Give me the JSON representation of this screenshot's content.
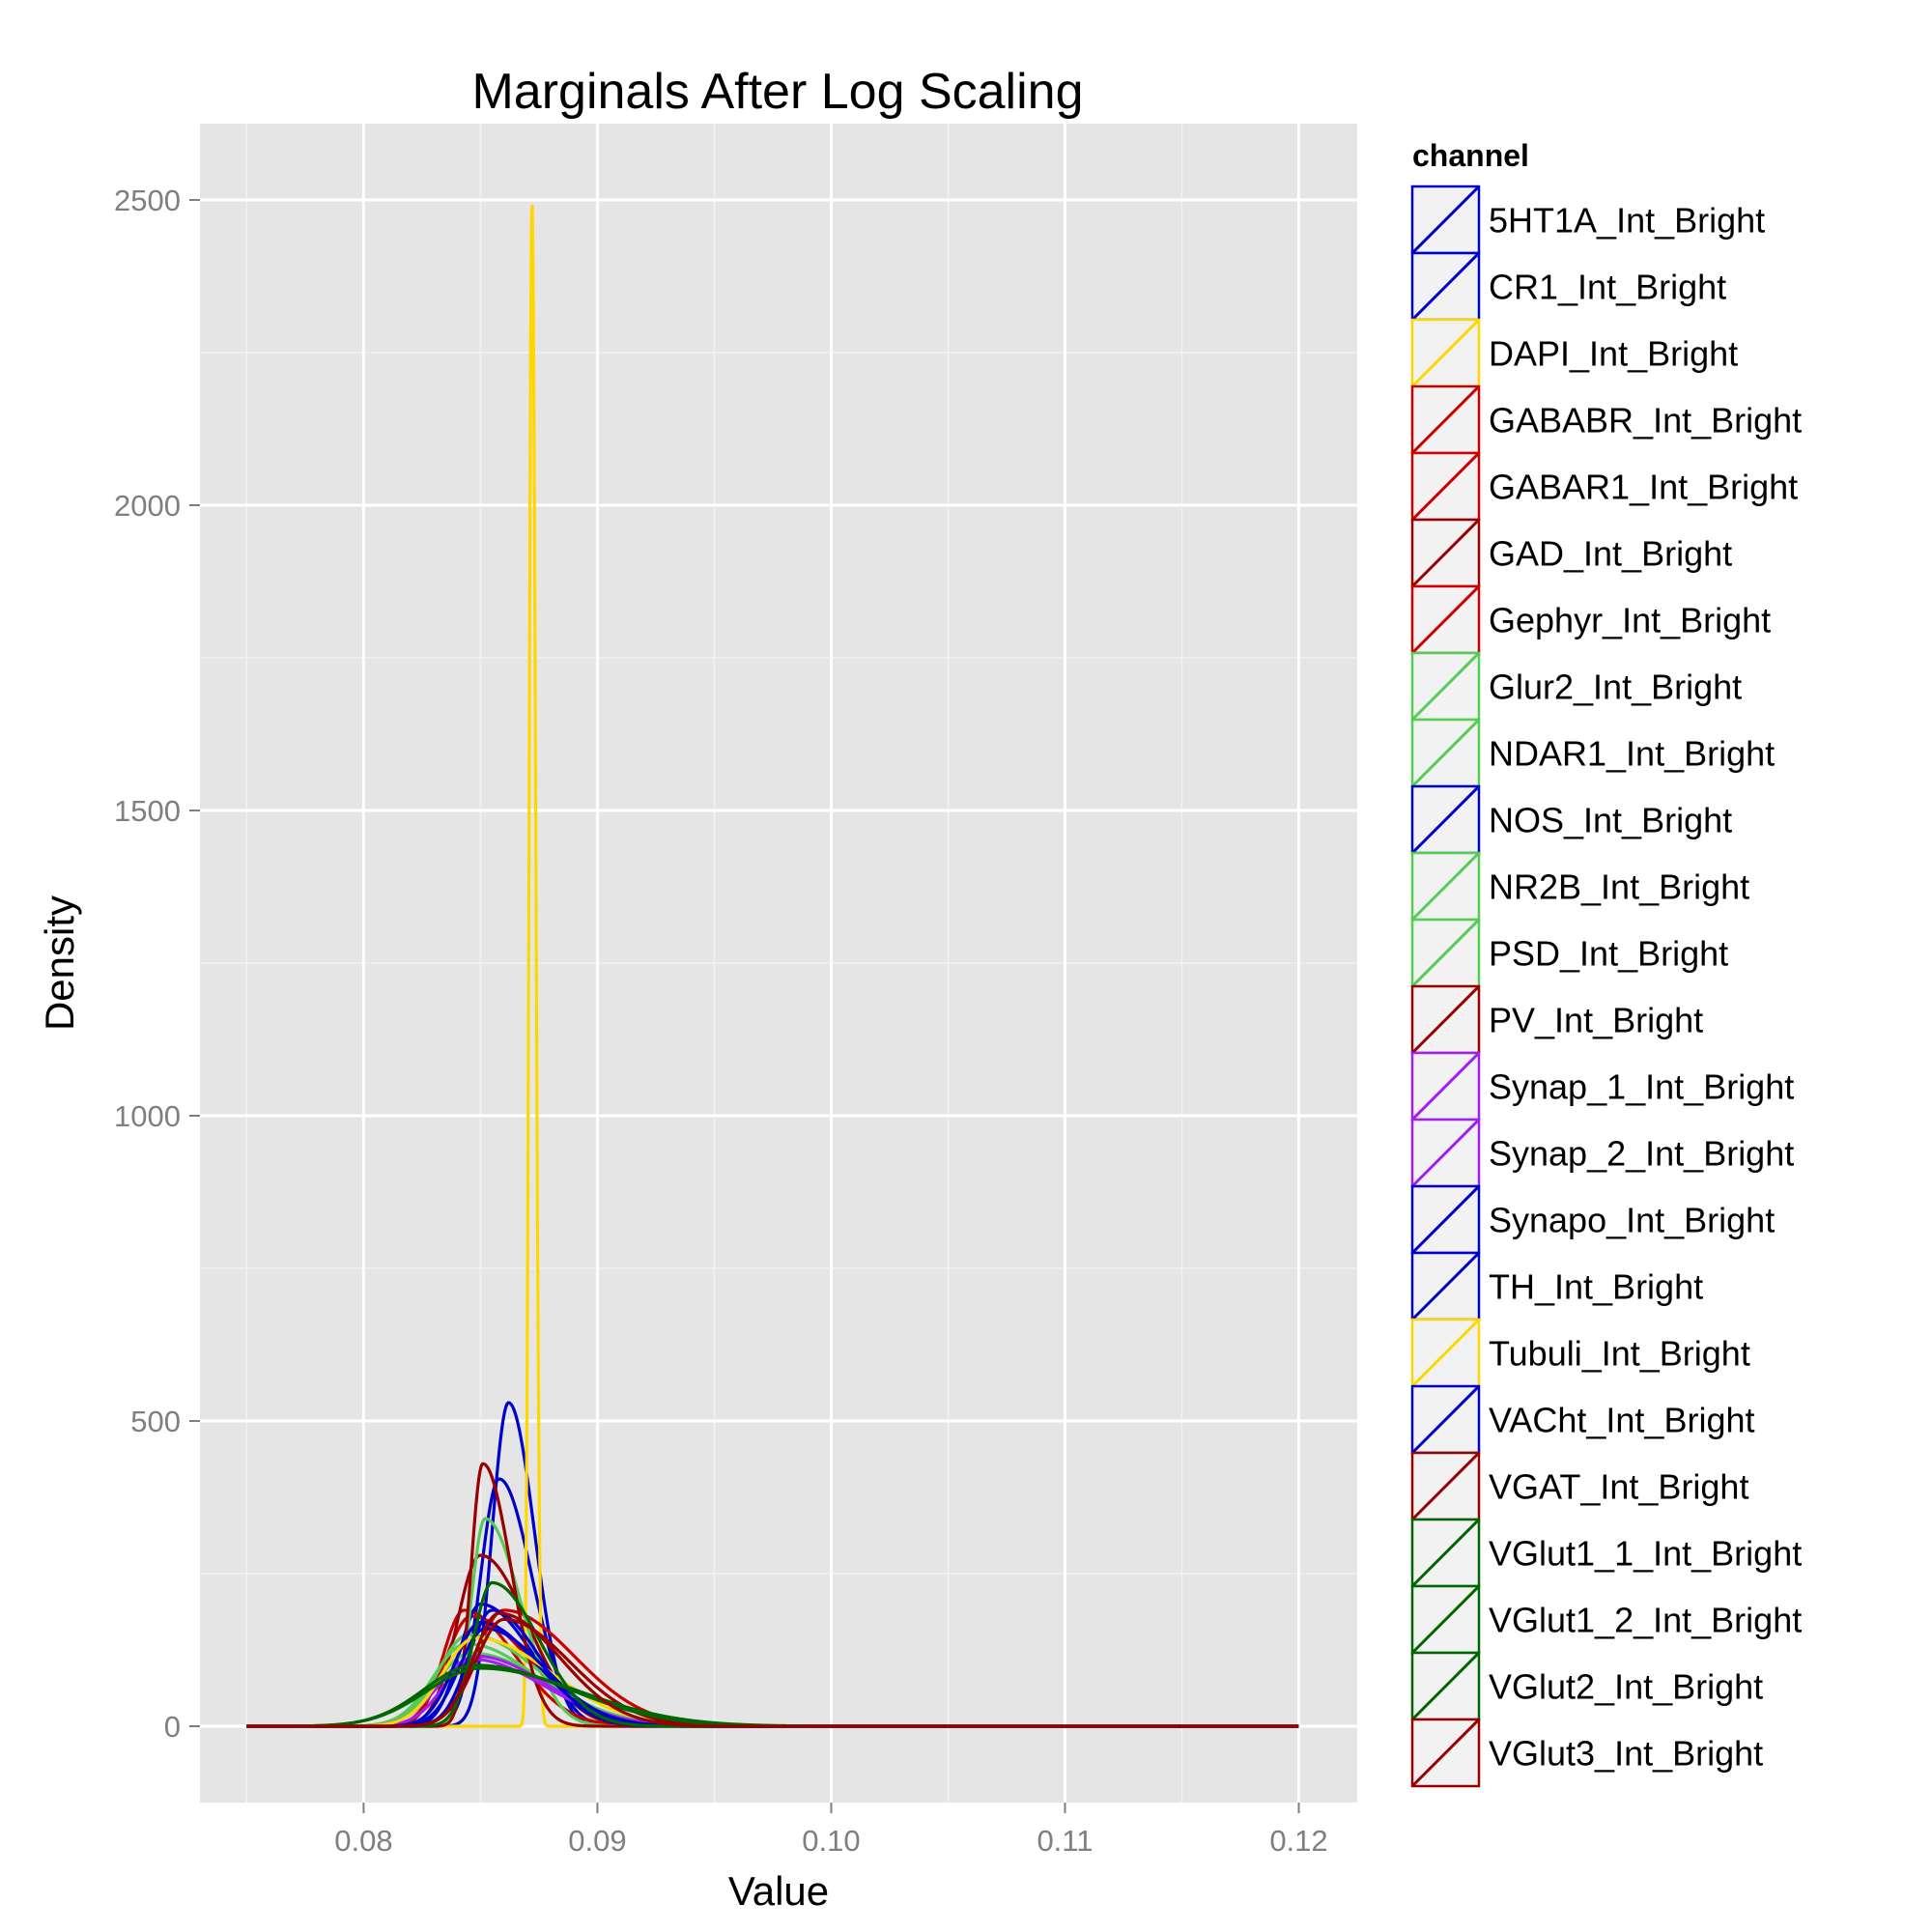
{
  "chart_data": {
    "type": "line",
    "title": "Marginals After Log Scaling",
    "xlabel": "Value",
    "ylabel": "Density",
    "xlim": [
      0.073,
      0.1225
    ],
    "ylim": [
      -125,
      2625
    ],
    "x_ticks": [
      0.08,
      0.09,
      0.1,
      0.11,
      0.12
    ],
    "x_tick_labels": [
      "0.08",
      "0.09",
      "0.10",
      "0.11",
      "0.12"
    ],
    "y_ticks": [
      0,
      500,
      1000,
      1500,
      2000,
      2500
    ],
    "y_tick_labels": [
      "0",
      "500",
      "1000",
      "1500",
      "2000",
      "2500"
    ],
    "grid": true,
    "legend_title": "channel",
    "legend_position": "right",
    "series": [
      {
        "name": "5HT1A_Int_Bright",
        "color": "#0000cc",
        "peak_x": 0.0862,
        "peak_y": 530,
        "sigma_left": 0.0007,
        "sigma_right": 0.0011
      },
      {
        "name": "CR1_Int_Bright",
        "color": "#0000cc",
        "peak_x": 0.0858,
        "peak_y": 405,
        "sigma_left": 0.0008,
        "sigma_right": 0.0014
      },
      {
        "name": "DAPI_Int_Bright",
        "color": "#ffd700",
        "peak_x": 0.0872,
        "peak_y": 2500,
        "sigma_left": 0.00012,
        "sigma_right": 0.00016
      },
      {
        "name": "GABABR_Int_Bright",
        "color": "#cc0000",
        "peak_x": 0.0846,
        "peak_y": 180,
        "sigma_left": 0.0011,
        "sigma_right": 0.0025
      },
      {
        "name": "GABAR1_Int_Bright",
        "color": "#cc0000",
        "peak_x": 0.0843,
        "peak_y": 190,
        "sigma_left": 0.0009,
        "sigma_right": 0.0022
      },
      {
        "name": "GAD_Int_Bright",
        "color": "#990000",
        "peak_x": 0.085,
        "peak_y": 280,
        "sigma_left": 0.001,
        "sigma_right": 0.002
      },
      {
        "name": "Gephyr_Int_Bright",
        "color": "#cc0000",
        "peak_x": 0.086,
        "peak_y": 190,
        "sigma_left": 0.0012,
        "sigma_right": 0.003
      },
      {
        "name": "Glur2_Int_Bright",
        "color": "#55cc55",
        "peak_x": 0.0845,
        "peak_y": 150,
        "sigma_left": 0.0013,
        "sigma_right": 0.003
      },
      {
        "name": "NDAR1_Int_Bright",
        "color": "#55cc55",
        "peak_x": 0.0844,
        "peak_y": 135,
        "sigma_left": 0.0014,
        "sigma_right": 0.003
      },
      {
        "name": "NOS_Int_Bright",
        "color": "#0000cc",
        "peak_x": 0.085,
        "peak_y": 200,
        "sigma_left": 0.0009,
        "sigma_right": 0.0022
      },
      {
        "name": "NR2B_Int_Bright",
        "color": "#55cc55",
        "peak_x": 0.0846,
        "peak_y": 120,
        "sigma_left": 0.0015,
        "sigma_right": 0.0032
      },
      {
        "name": "PSD_Int_Bright",
        "color": "#55cc55",
        "peak_x": 0.0852,
        "peak_y": 340,
        "sigma_left": 0.0006,
        "sigma_right": 0.0015
      },
      {
        "name": "PV_Int_Bright",
        "color": "#990000",
        "peak_x": 0.0851,
        "peak_y": 430,
        "sigma_left": 0.0005,
        "sigma_right": 0.0012
      },
      {
        "name": "Synap_1_Int_Bright",
        "color": "#a020f0",
        "peak_x": 0.0848,
        "peak_y": 115,
        "sigma_left": 0.0013,
        "sigma_right": 0.003
      },
      {
        "name": "Synap_2_Int_Bright",
        "color": "#a020f0",
        "peak_x": 0.0846,
        "peak_y": 110,
        "sigma_left": 0.0014,
        "sigma_right": 0.0031
      },
      {
        "name": "Synapo_Int_Bright",
        "color": "#0000cc",
        "peak_x": 0.0855,
        "peak_y": 190,
        "sigma_left": 0.001,
        "sigma_right": 0.002
      },
      {
        "name": "TH_Int_Bright",
        "color": "#0000cc",
        "peak_x": 0.085,
        "peak_y": 170,
        "sigma_left": 0.0011,
        "sigma_right": 0.0024
      },
      {
        "name": "Tubuli_Int_Bright",
        "color": "#ffd700",
        "peak_x": 0.0848,
        "peak_y": 145,
        "sigma_left": 0.0014,
        "sigma_right": 0.0032
      },
      {
        "name": "VACht_Int_Bright",
        "color": "#0000cc",
        "peak_x": 0.0852,
        "peak_y": 160,
        "sigma_left": 0.0011,
        "sigma_right": 0.0025
      },
      {
        "name": "VGAT_Int_Bright",
        "color": "#990000",
        "peak_x": 0.086,
        "peak_y": 175,
        "sigma_left": 0.0012,
        "sigma_right": 0.0028
      },
      {
        "name": "VGlut1_1_Int_Bright",
        "color": "#006600",
        "peak_x": 0.0848,
        "peak_y": 100,
        "sigma_left": 0.0022,
        "sigma_right": 0.004
      },
      {
        "name": "VGlut1_2_Int_Bright",
        "color": "#006600",
        "peak_x": 0.085,
        "peak_y": 95,
        "sigma_left": 0.0023,
        "sigma_right": 0.0042
      },
      {
        "name": "VGlut2_Int_Bright",
        "color": "#006600",
        "peak_x": 0.0855,
        "peak_y": 235,
        "sigma_left": 0.0008,
        "sigma_right": 0.002
      },
      {
        "name": "VGlut3_Int_Bright",
        "color": "#990000",
        "peak_x": 0.0858,
        "peak_y": 185,
        "sigma_left": 0.0011,
        "sigma_right": 0.0026
      }
    ]
  }
}
